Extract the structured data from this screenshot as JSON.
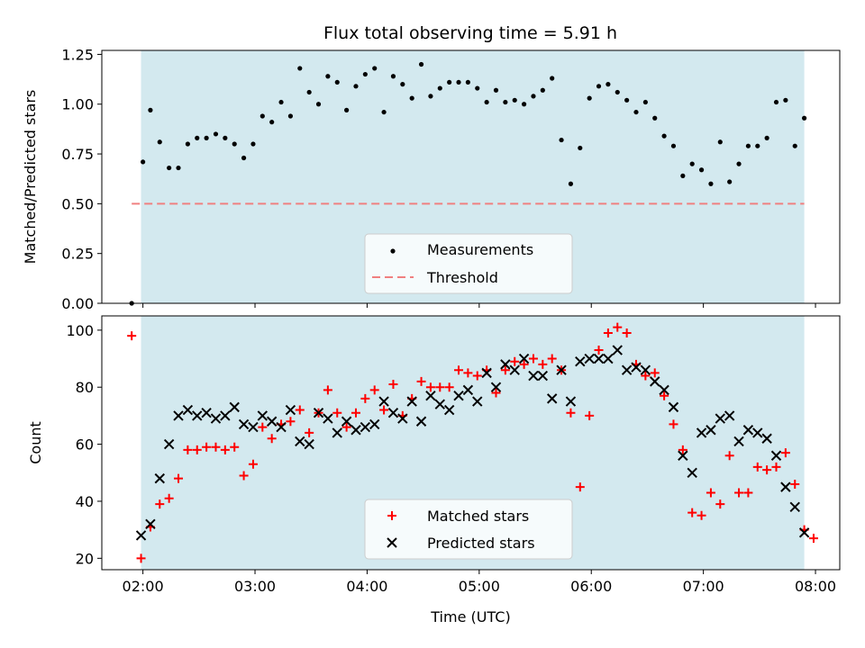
{
  "title": "Flux total observing time = 5.91 h",
  "colors": {
    "shade": "#d3e9ef",
    "matched": "#ff0000",
    "predicted": "#000000",
    "threshold": "#f08080",
    "points": "#000000"
  },
  "chart_data": [
    {
      "type": "scatter",
      "ylabel": "Matched/Predicted stars",
      "xlim": [
        "01:38",
        "08:13"
      ],
      "ylim": [
        0,
        1.27
      ],
      "yticks": [
        "0.00",
        "0.25",
        "0.50",
        "0.75",
        "1.00",
        "1.25"
      ],
      "shaded_interval": [
        "01:59",
        "07:54"
      ],
      "threshold": {
        "label": "Threshold",
        "value": 0.5,
        "x_range": [
          "01:54",
          "07:54"
        ]
      },
      "legend_position": "lower center",
      "series": [
        {
          "name": "Measurements",
          "points": [
            [
              "01:54",
              0.0
            ],
            [
              "02:00",
              0.71
            ],
            [
              "02:04",
              0.97
            ],
            [
              "02:09",
              0.81
            ],
            [
              "02:14",
              0.68
            ],
            [
              "02:19",
              0.68
            ],
            [
              "02:24",
              0.8
            ],
            [
              "02:29",
              0.83
            ],
            [
              "02:34",
              0.83
            ],
            [
              "02:39",
              0.85
            ],
            [
              "02:44",
              0.83
            ],
            [
              "02:49",
              0.8
            ],
            [
              "02:54",
              0.73
            ],
            [
              "02:59",
              0.8
            ],
            [
              "03:04",
              0.94
            ],
            [
              "03:09",
              0.91
            ],
            [
              "03:14",
              1.01
            ],
            [
              "03:19",
              0.94
            ],
            [
              "03:24",
              1.18
            ],
            [
              "03:29",
              1.06
            ],
            [
              "03:34",
              1.0
            ],
            [
              "03:39",
              1.14
            ],
            [
              "03:44",
              1.11
            ],
            [
              "03:49",
              0.97
            ],
            [
              "03:54",
              1.09
            ],
            [
              "03:59",
              1.15
            ],
            [
              "04:04",
              1.18
            ],
            [
              "04:09",
              0.96
            ],
            [
              "04:14",
              1.14
            ],
            [
              "04:19",
              1.1
            ],
            [
              "04:24",
              1.03
            ],
            [
              "04:29",
              1.2
            ],
            [
              "04:34",
              1.04
            ],
            [
              "04:39",
              1.08
            ],
            [
              "04:44",
              1.11
            ],
            [
              "04:49",
              1.11
            ],
            [
              "04:54",
              1.11
            ],
            [
              "04:59",
              1.08
            ],
            [
              "05:04",
              1.01
            ],
            [
              "05:09",
              1.07
            ],
            [
              "05:14",
              1.01
            ],
            [
              "05:19",
              1.02
            ],
            [
              "05:24",
              1.0
            ],
            [
              "05:29",
              1.04
            ],
            [
              "05:34",
              1.07
            ],
            [
              "05:39",
              1.13
            ],
            [
              "05:44",
              0.82
            ],
            [
              "05:49",
              0.6
            ],
            [
              "05:54",
              0.78
            ],
            [
              "05:59",
              1.03
            ],
            [
              "06:04",
              1.09
            ],
            [
              "06:09",
              1.1
            ],
            [
              "06:14",
              1.06
            ],
            [
              "06:19",
              1.02
            ],
            [
              "06:24",
              0.96
            ],
            [
              "06:29",
              1.01
            ],
            [
              "06:34",
              0.93
            ],
            [
              "06:39",
              0.84
            ],
            [
              "06:44",
              0.79
            ],
            [
              "06:49",
              0.64
            ],
            [
              "06:54",
              0.7
            ],
            [
              "06:59",
              0.67
            ],
            [
              "07:04",
              0.6
            ],
            [
              "07:09",
              0.81
            ],
            [
              "07:14",
              0.61
            ],
            [
              "07:19",
              0.7
            ],
            [
              "07:24",
              0.79
            ],
            [
              "07:29",
              0.79
            ],
            [
              "07:34",
              0.83
            ],
            [
              "07:39",
              1.01
            ],
            [
              "07:44",
              1.02
            ],
            [
              "07:49",
              0.79
            ],
            [
              "07:54",
              0.93
            ]
          ]
        }
      ]
    },
    {
      "type": "scatter",
      "xlabel": "Time (UTC)",
      "ylabel": "Count",
      "xlim": [
        "01:38",
        "08:13"
      ],
      "ylim": [
        16,
        105
      ],
      "yticks": [
        "20",
        "40",
        "60",
        "80",
        "100"
      ],
      "xticks": [
        "02:00",
        "03:00",
        "04:00",
        "05:00",
        "06:00",
        "07:00",
        "08:00"
      ],
      "shaded_interval": [
        "01:59",
        "07:54"
      ],
      "legend_position": "lower center",
      "series": [
        {
          "name": "Matched stars",
          "points": [
            [
              "01:54",
              98
            ],
            [
              "01:59",
              20
            ],
            [
              "02:04",
              31
            ],
            [
              "02:09",
              39
            ],
            [
              "02:14",
              41
            ],
            [
              "02:19",
              48
            ],
            [
              "02:24",
              58
            ],
            [
              "02:29",
              58
            ],
            [
              "02:34",
              59
            ],
            [
              "02:39",
              59
            ],
            [
              "02:44",
              58
            ],
            [
              "02:49",
              59
            ],
            [
              "02:54",
              49
            ],
            [
              "02:59",
              53
            ],
            [
              "03:04",
              66
            ],
            [
              "03:09",
              62
            ],
            [
              "03:14",
              67
            ],
            [
              "03:19",
              68
            ],
            [
              "03:24",
              72
            ],
            [
              "03:29",
              64
            ],
            [
              "03:34",
              71
            ],
            [
              "03:39",
              79
            ],
            [
              "03:44",
              71
            ],
            [
              "03:49",
              66
            ],
            [
              "03:54",
              71
            ],
            [
              "03:59",
              76
            ],
            [
              "04:04",
              79
            ],
            [
              "04:09",
              72
            ],
            [
              "04:14",
              81
            ],
            [
              "04:19",
              70
            ],
            [
              "04:24",
              76
            ],
            [
              "04:29",
              82
            ],
            [
              "04:34",
              80
            ],
            [
              "04:39",
              80
            ],
            [
              "04:44",
              80
            ],
            [
              "04:49",
              86
            ],
            [
              "04:54",
              85
            ],
            [
              "04:59",
              84
            ],
            [
              "05:04",
              86
            ],
            [
              "05:09",
              78
            ],
            [
              "05:14",
              86
            ],
            [
              "05:19",
              89
            ],
            [
              "05:24",
              88
            ],
            [
              "05:29",
              90
            ],
            [
              "05:34",
              88
            ],
            [
              "05:39",
              90
            ],
            [
              "05:44",
              86
            ],
            [
              "05:49",
              71
            ],
            [
              "05:54",
              45
            ],
            [
              "05:59",
              70
            ],
            [
              "06:04",
              93
            ],
            [
              "06:09",
              99
            ],
            [
              "06:14",
              101
            ],
            [
              "06:19",
              99
            ],
            [
              "06:24",
              88
            ],
            [
              "06:29",
              84
            ],
            [
              "06:34",
              85
            ],
            [
              "06:39",
              77
            ],
            [
              "06:44",
              67
            ],
            [
              "06:49",
              58
            ],
            [
              "06:54",
              36
            ],
            [
              "06:59",
              35
            ],
            [
              "07:04",
              43
            ],
            [
              "07:09",
              39
            ],
            [
              "07:14",
              56
            ],
            [
              "07:19",
              43
            ],
            [
              "07:24",
              43
            ],
            [
              "07:29",
              52
            ],
            [
              "07:34",
              51
            ],
            [
              "07:39",
              52
            ],
            [
              "07:44",
              57
            ],
            [
              "07:49",
              46
            ],
            [
              "07:54",
              30
            ],
            [
              "07:59",
              27
            ]
          ]
        },
        {
          "name": "Predicted stars",
          "points": [
            [
              "01:59",
              28
            ],
            [
              "02:04",
              32
            ],
            [
              "02:09",
              48
            ],
            [
              "02:14",
              60
            ],
            [
              "02:19",
              70
            ],
            [
              "02:24",
              72
            ],
            [
              "02:29",
              70
            ],
            [
              "02:34",
              71
            ],
            [
              "02:39",
              69
            ],
            [
              "02:44",
              70
            ],
            [
              "02:49",
              73
            ],
            [
              "02:54",
              67
            ],
            [
              "02:59",
              66
            ],
            [
              "03:04",
              70
            ],
            [
              "03:09",
              68
            ],
            [
              "03:14",
              66
            ],
            [
              "03:19",
              72
            ],
            [
              "03:24",
              61
            ],
            [
              "03:29",
              60
            ],
            [
              "03:34",
              71
            ],
            [
              "03:39",
              69
            ],
            [
              "03:44",
              64
            ],
            [
              "03:49",
              68
            ],
            [
              "03:54",
              65
            ],
            [
              "03:59",
              66
            ],
            [
              "04:04",
              67
            ],
            [
              "04:09",
              75
            ],
            [
              "04:14",
              71
            ],
            [
              "04:19",
              69
            ],
            [
              "04:24",
              75
            ],
            [
              "04:29",
              68
            ],
            [
              "04:34",
              77
            ],
            [
              "04:39",
              74
            ],
            [
              "04:44",
              72
            ],
            [
              "04:49",
              77
            ],
            [
              "04:54",
              79
            ],
            [
              "04:59",
              75
            ],
            [
              "05:04",
              85
            ],
            [
              "05:09",
              80
            ],
            [
              "05:14",
              88
            ],
            [
              "05:19",
              86
            ],
            [
              "05:24",
              90
            ],
            [
              "05:29",
              84
            ],
            [
              "05:34",
              84
            ],
            [
              "05:39",
              76
            ],
            [
              "05:44",
              86
            ],
            [
              "05:49",
              75
            ],
            [
              "05:54",
              89
            ],
            [
              "05:59",
              90
            ],
            [
              "06:04",
              90
            ],
            [
              "06:09",
              90
            ],
            [
              "06:14",
              93
            ],
            [
              "06:19",
              86
            ],
            [
              "06:24",
              87
            ],
            [
              "06:29",
              86
            ],
            [
              "06:34",
              82
            ],
            [
              "06:39",
              79
            ],
            [
              "06:44",
              73
            ],
            [
              "06:49",
              56
            ],
            [
              "06:54",
              50
            ],
            [
              "06:59",
              64
            ],
            [
              "07:04",
              65
            ],
            [
              "07:09",
              69
            ],
            [
              "07:14",
              70
            ],
            [
              "07:19",
              61
            ],
            [
              "07:24",
              65
            ],
            [
              "07:29",
              64
            ],
            [
              "07:34",
              62
            ],
            [
              "07:39",
              56
            ],
            [
              "07:44",
              45
            ],
            [
              "07:49",
              38
            ],
            [
              "07:54",
              29
            ]
          ]
        }
      ]
    }
  ]
}
